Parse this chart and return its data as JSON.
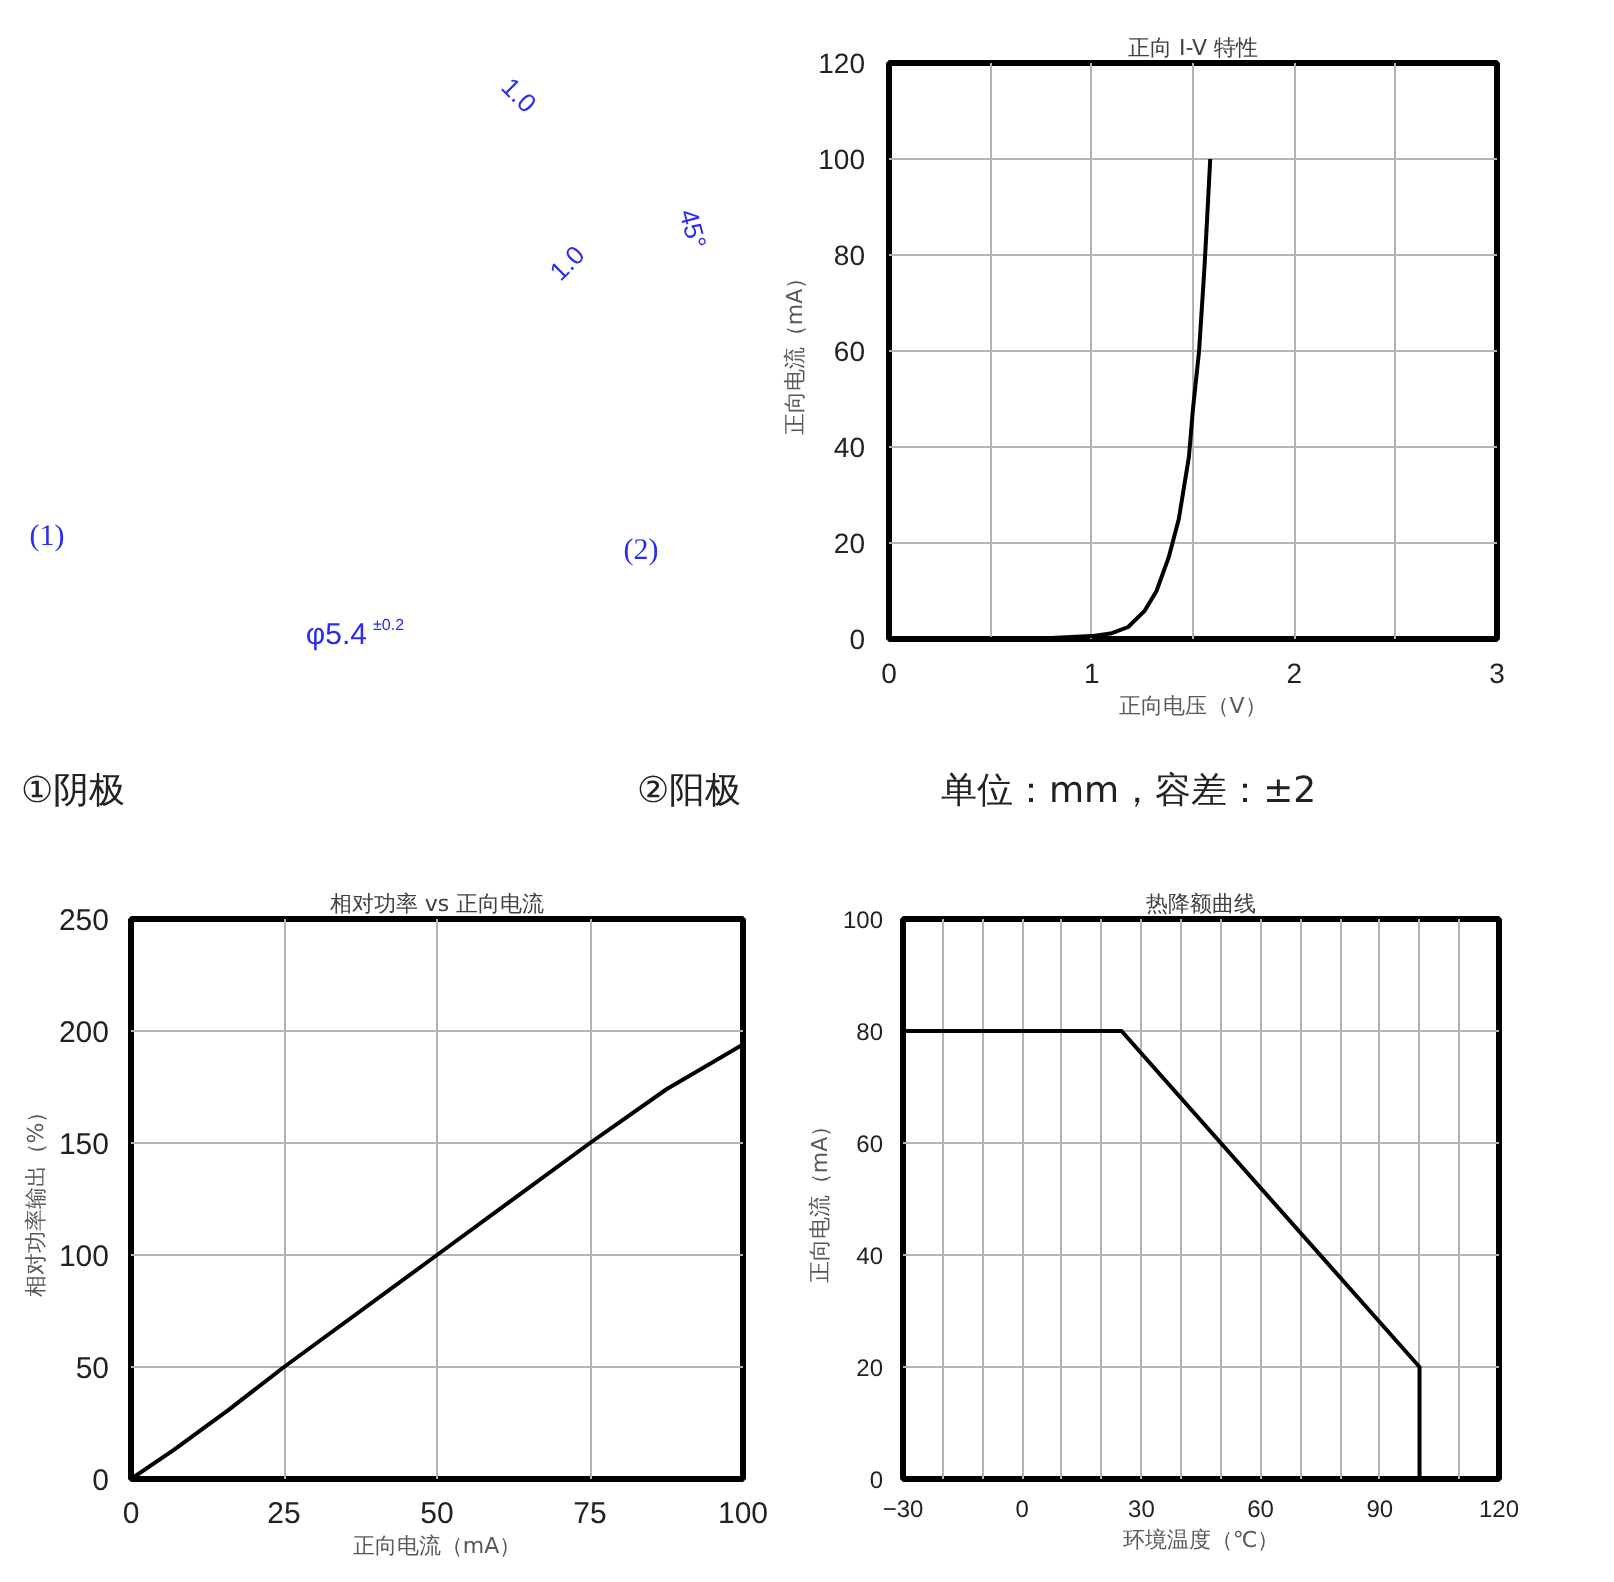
{
  "chart_data": [
    {
      "type": "other",
      "color": "#2b2bf2",
      "annotations": [
        "1.0",
        "1.0",
        "45°",
        "(1)",
        "(2)",
        "φ5.4$^{±0.2}$"
      ]
    },
    {
      "type": "line",
      "title": "正向 I-V 特性",
      "xlabel": "正向电压（V）",
      "ylabel": "正向电流（mA）",
      "x": [
        0,
        0.5,
        0.8,
        1.0,
        1.1,
        1.18,
        1.26,
        1.32,
        1.38,
        1.43,
        1.48,
        1.5,
        1.53,
        1.556,
        1.569,
        1.585
      ],
      "series": [
        {
          "color": "#000000",
          "values": [
            0,
            0,
            0.2,
            0.6,
            1.2,
            2.5,
            5.8,
            10,
            17,
            25,
            38,
            48,
            60,
            77,
            87,
            100
          ]
        }
      ],
      "xlim": [
        0,
        3
      ],
      "ylim": [
        0,
        120
      ],
      "xticks": [
        0,
        {
          "value": 0.5,
          "label": null
        },
        1,
        {
          "value": 1.5,
          "label": null
        },
        2,
        {
          "value": 2.5,
          "label": null
        },
        3
      ],
      "yticks": [
        0,
        20,
        40,
        60,
        80,
        100,
        120
      ],
      "grid": true
    },
    {
      "type": "other",
      "color": "#222222",
      "annotations": [
        "①阴极",
        "②阳极",
        "单位：mm，容差：±2"
      ]
    },
    {
      "type": "line",
      "title": "相对功率 vs 正向电流",
      "xlabel": "正向电流（mA）",
      "ylabel": "相对功率输出（%）",
      "x": [
        0,
        7,
        16,
        25,
        50,
        75,
        87.5,
        100
      ],
      "series": [
        {
          "color": "#000000",
          "values": [
            0,
            13,
            31,
            50,
            100,
            150,
            174,
            194
          ]
        }
      ],
      "xlim": [
        0,
        100
      ],
      "ylim": [
        0,
        250
      ],
      "xticks": [
        0,
        25,
        50,
        75,
        100
      ],
      "yticks": [
        0,
        50,
        100,
        150,
        200,
        250
      ],
      "grid": true
    },
    {
      "type": "line",
      "title": "热降额曲线",
      "xlabel": "环境温度（℃）",
      "ylabel": "正向电流（mA）",
      "x": [
        -30,
        25,
        100,
        100
      ],
      "series": [
        {
          "color": "#000000",
          "values": [
            80,
            80,
            20,
            0
          ]
        }
      ],
      "xlim": [
        -30,
        120
      ],
      "ylim": [
        0,
        100
      ],
      "xticks": [
        {
          "value": -30,
          "label": "−30"
        },
        {
          "value": -20,
          "label": null
        },
        {
          "value": -10,
          "label": null
        },
        0,
        {
          "value": 10,
          "label": null
        },
        {
          "value": 20,
          "label": null
        },
        30,
        {
          "value": 40,
          "label": null
        },
        {
          "value": 50,
          "label": null
        },
        60,
        {
          "value": 70,
          "label": null
        },
        {
          "value": 80,
          "label": null
        },
        90,
        {
          "value": 100,
          "label": null
        },
        {
          "value": 110,
          "label": null
        },
        120
      ],
      "yticks": [
        0,
        20,
        40,
        60,
        80,
        100
      ],
      "grid": true
    }
  ]
}
